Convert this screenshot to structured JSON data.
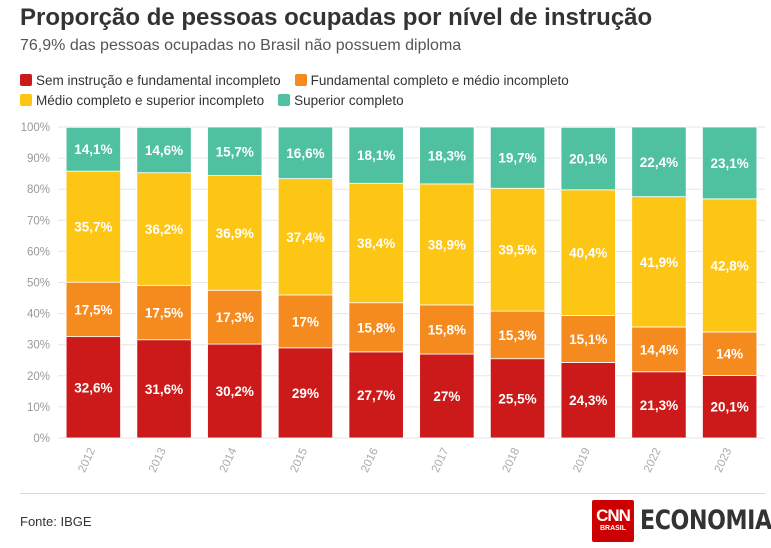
{
  "header": {
    "title": "Proporção de pessoas ocupadas por nível de instrução",
    "subtitle": "76,9% das pessoas ocupadas no Brasil não possuem diploma"
  },
  "colors": {
    "sem_instrucao": "#cc1a1a",
    "fundamental": "#f58a1f",
    "medio": "#fdc514",
    "superior": "#4fc0a0"
  },
  "legend": [
    {
      "label": "Sem instrução e fundamental incompleto",
      "color": "#cc1a1a"
    },
    {
      "label": "Fundamental completo e médio incompleto",
      "color": "#f58a1f"
    },
    {
      "label": "Médio completo e superior incompleto",
      "color": "#fdc514"
    },
    {
      "label": "Superior completo",
      "color": "#4fc0a0"
    }
  ],
  "chart_data": {
    "type": "bar",
    "stacked": true,
    "categories": [
      "2012",
      "2013",
      "2014",
      "2015",
      "2016",
      "2017",
      "2018",
      "2019",
      "2022",
      "2023"
    ],
    "ylim": [
      0,
      100
    ],
    "yticks": [
      "0%",
      "10%",
      "20%",
      "30%",
      "40%",
      "50%",
      "60%",
      "70%",
      "80%",
      "90%",
      "100%"
    ],
    "grid": true,
    "series": [
      {
        "name": "Sem instrução e fundamental incompleto",
        "color": "#cc1a1a",
        "values": [
          32.6,
          31.6,
          30.2,
          29,
          27.7,
          27,
          25.5,
          24.3,
          21.3,
          20.1
        ],
        "labels": [
          "32,6%",
          "31,6%",
          "30,2%",
          "29%",
          "27,7%",
          "27%",
          "25,5%",
          "24,3%",
          "21,3%",
          "20,1%"
        ]
      },
      {
        "name": "Fundamental completo e médio incompleto",
        "color": "#f58a1f",
        "values": [
          17.5,
          17.5,
          17.3,
          17,
          15.8,
          15.8,
          15.3,
          15.1,
          14.4,
          14
        ],
        "labels": [
          "17,5%",
          "17,5%",
          "17,3%",
          "17%",
          "15,8%",
          "15,8%",
          "15,3%",
          "15,1%",
          "14,4%",
          "14%"
        ]
      },
      {
        "name": "Médio completo e superior incompleto",
        "color": "#fdc514",
        "values": [
          35.7,
          36.2,
          36.9,
          37.4,
          38.4,
          38.9,
          39.5,
          40.4,
          41.9,
          42.8
        ],
        "labels": [
          "35,7%",
          "36,2%",
          "36,9%",
          "37,4%",
          "38,4%",
          "38,9%",
          "39,5%",
          "40,4%",
          "41,9%",
          "42,8%"
        ]
      },
      {
        "name": "Superior completo",
        "color": "#4fc0a0",
        "values": [
          14.1,
          14.6,
          15.7,
          16.6,
          18.1,
          18.3,
          19.7,
          20.1,
          22.4,
          23.1
        ],
        "labels": [
          "14,1%",
          "14,6%",
          "15,7%",
          "16,6%",
          "18,1%",
          "18,3%",
          "19,7%",
          "20,1%",
          "22,4%",
          "23,1%"
        ]
      }
    ]
  },
  "footer": {
    "source": "Fonte: IBGE",
    "brand_logo": "CNN",
    "brand_logo_sub": "BRASIL",
    "brand_section": "ECONOMIA"
  }
}
